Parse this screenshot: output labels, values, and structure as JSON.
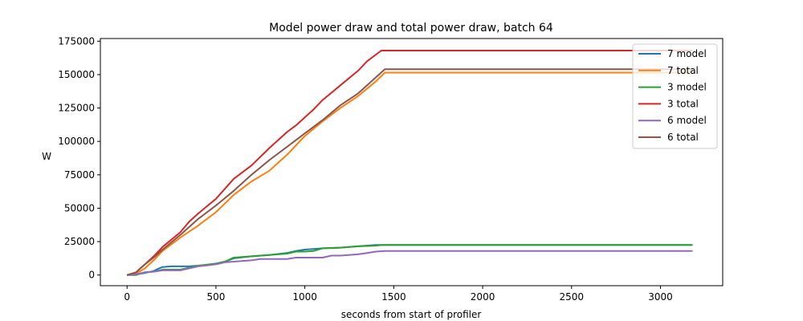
{
  "chart_data": {
    "type": "line",
    "title": "Model power draw and total power draw, batch 64",
    "xlabel": "seconds from start of profiler",
    "ylabel": "W",
    "xlim": [
      -150,
      3350
    ],
    "ylim": [
      -8000,
      177000
    ],
    "xticks": [
      0,
      500,
      1000,
      1500,
      2000,
      2500,
      3000
    ],
    "yticks": [
      0,
      25000,
      50000,
      75000,
      100000,
      125000,
      150000,
      175000
    ],
    "grid": false,
    "legend_position": "top-right",
    "series": [
      {
        "name": "7 model",
        "color": "#1f77b4",
        "x": [
          0,
          50,
          100,
          150,
          180,
          200,
          250,
          300,
          350,
          400,
          450,
          500,
          550,
          600,
          700,
          800,
          900,
          950,
          1000,
          1050,
          1100,
          1200,
          1300,
          1400,
          1430,
          1500,
          2000,
          2500,
          3000,
          3180
        ],
        "y": [
          0,
          500,
          1500,
          3000,
          5000,
          6000,
          6500,
          6500,
          6500,
          7000,
          7500,
          8500,
          10000,
          12500,
          14000,
          15000,
          16500,
          18000,
          19000,
          19500,
          20000,
          20500,
          21500,
          22500,
          22500,
          22500,
          22500,
          22500,
          22500,
          22500
        ]
      },
      {
        "name": "7 total",
        "color": "#ff7f0e",
        "x": [
          0,
          50,
          100,
          150,
          200,
          300,
          400,
          500,
          600,
          700,
          800,
          900,
          1000,
          1100,
          1200,
          1300,
          1400,
          1450,
          1500,
          2000,
          2500,
          3000,
          3180
        ],
        "y": [
          0,
          1000,
          5000,
          11000,
          18000,
          28000,
          37000,
          47000,
          60000,
          70000,
          78000,
          90000,
          104000,
          115000,
          125000,
          134000,
          145000,
          151500,
          151500,
          151500,
          151500,
          151500,
          151500
        ]
      },
      {
        "name": "3 model",
        "color": "#2ca02c",
        "x": [
          0,
          50,
          100,
          150,
          200,
          300,
          350,
          400,
          500,
          550,
          600,
          700,
          800,
          900,
          950,
          1000,
          1050,
          1100,
          1200,
          1300,
          1400,
          1430,
          1500,
          2000,
          2500,
          3000,
          3180
        ],
        "y": [
          0,
          0,
          2000,
          2500,
          4000,
          4000,
          5500,
          7000,
          8500,
          10000,
          13000,
          14000,
          15000,
          16000,
          17500,
          17500,
          18000,
          20000,
          20500,
          21500,
          22000,
          22500,
          22500,
          22500,
          22500,
          22500,
          22500
        ]
      },
      {
        "name": "3 total",
        "color": "#d62728",
        "x": [
          0,
          50,
          100,
          150,
          200,
          300,
          350,
          400,
          500,
          600,
          700,
          800,
          900,
          950,
          1000,
          1050,
          1100,
          1200,
          1300,
          1350,
          1400,
          1430,
          1500,
          2000,
          2500,
          3000,
          3180
        ],
        "y": [
          0,
          2000,
          8000,
          14000,
          21000,
          32000,
          40000,
          46000,
          57000,
          72000,
          82000,
          95000,
          107000,
          112000,
          118000,
          124000,
          131000,
          142000,
          153000,
          160000,
          165000,
          168000,
          168000,
          168000,
          168000,
          168000,
          168000
        ]
      },
      {
        "name": "6 model",
        "color": "#9467bd",
        "x": [
          0,
          50,
          100,
          150,
          200,
          300,
          350,
          400,
          500,
          550,
          600,
          700,
          750,
          800,
          900,
          950,
          1000,
          1100,
          1150,
          1200,
          1300,
          1350,
          1400,
          1450,
          1500,
          2000,
          2500,
          3000,
          3180
        ],
        "y": [
          0,
          500,
          2000,
          2500,
          3500,
          3500,
          5000,
          6500,
          8000,
          9500,
          10000,
          11000,
          12000,
          12000,
          12000,
          13000,
          13000,
          13000,
          14500,
          14500,
          15500,
          16500,
          17500,
          18000,
          18000,
          18000,
          18000,
          18000,
          18000
        ]
      },
      {
        "name": "6 total",
        "color": "#8c564b",
        "x": [
          0,
          50,
          100,
          150,
          200,
          300,
          400,
          500,
          600,
          700,
          800,
          900,
          1000,
          1100,
          1200,
          1300,
          1400,
          1450,
          1500,
          2000,
          2500,
          3000,
          3180
        ],
        "y": [
          0,
          2000,
          8000,
          13000,
          19000,
          30000,
          42000,
          52000,
          63000,
          75000,
          86000,
          96000,
          106000,
          116000,
          127000,
          136000,
          148000,
          154000,
          154000,
          154000,
          154000,
          154000,
          154000
        ]
      }
    ]
  }
}
